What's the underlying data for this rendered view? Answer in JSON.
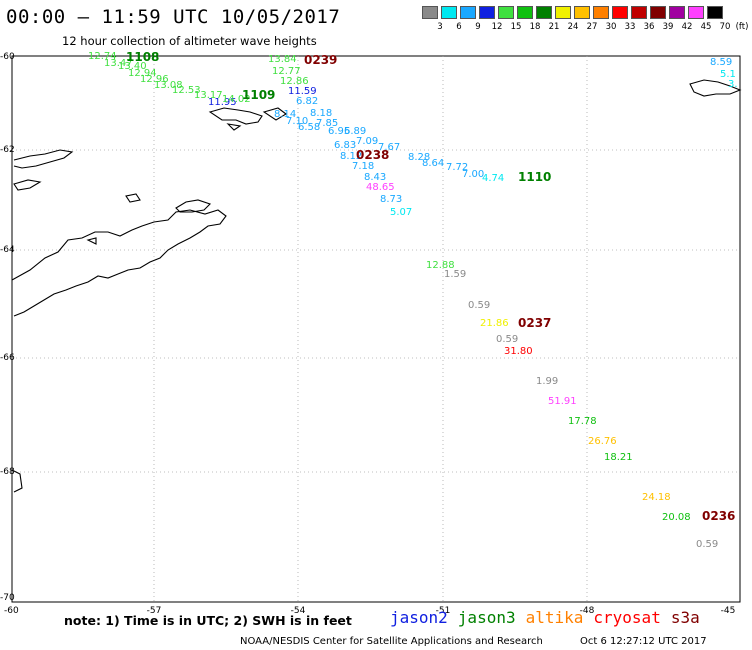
{
  "header": {
    "title": "00:00 – 11:59 UTC 10/05/2017",
    "subtitle": "12 hour collection of altimeter wave heights"
  },
  "legend": {
    "unit": "(ft)",
    "items": [
      {
        "label": "3",
        "color": "#8a8a8a"
      },
      {
        "label": "6",
        "color": "#00e8f0"
      },
      {
        "label": "9",
        "color": "#1aa8ff"
      },
      {
        "label": "12",
        "color": "#1020e0"
      },
      {
        "label": "15",
        "color": "#40e040"
      },
      {
        "label": "18",
        "color": "#10c010"
      },
      {
        "label": "21",
        "color": "#008000"
      },
      {
        "label": "24",
        "color": "#f0f000"
      },
      {
        "label": "27",
        "color": "#ffc000"
      },
      {
        "label": "30",
        "color": "#ff8000"
      },
      {
        "label": "33",
        "color": "#ff0000"
      },
      {
        "label": "36",
        "color": "#c00000"
      },
      {
        "label": "39",
        "color": "#800000"
      },
      {
        "label": "42",
        "color": "#a000a0"
      },
      {
        "label": "45",
        "color": "#ff40ff"
      },
      {
        "label": "70",
        "color": "#000000"
      }
    ]
  },
  "axes": {
    "lon_ticks": [
      "-60",
      "-57",
      "-54",
      "-51",
      "-48",
      "-45"
    ],
    "lat_ticks": [
      "-60",
      "-62",
      "-64",
      "-66",
      "-68",
      "-70"
    ]
  },
  "passes": [
    {
      "label": "1108",
      "color": "#008000"
    },
    {
      "label": "0239",
      "color": "#800000"
    },
    {
      "label": "1109",
      "color": "#008000"
    },
    {
      "label": "0238",
      "color": "#800000"
    },
    {
      "label": "1110",
      "color": "#008000"
    },
    {
      "label": "0237",
      "color": "#800000"
    },
    {
      "label": "0236",
      "color": "#800000"
    }
  ],
  "measurements": [
    {
      "value": "12.74",
      "color": "#40e040"
    },
    {
      "value": "13.47",
      "color": "#40e040"
    },
    {
      "value": "13.40",
      "color": "#40e040"
    },
    {
      "value": "12.94",
      "color": "#40e040"
    },
    {
      "value": "12.96",
      "color": "#40e040"
    },
    {
      "value": "13.08",
      "color": "#40e040"
    },
    {
      "value": "12.53",
      "color": "#40e040"
    },
    {
      "value": "13.17",
      "color": "#40e040"
    },
    {
      "value": "11.95",
      "color": "#1020e0"
    },
    {
      "value": "14.02",
      "color": "#40e040"
    },
    {
      "value": "13.84",
      "color": "#40e040"
    },
    {
      "value": "12.77",
      "color": "#40e040"
    },
    {
      "value": "12.86",
      "color": "#40e040"
    },
    {
      "value": "11.59",
      "color": "#1020e0"
    },
    {
      "value": "6.82",
      "color": "#1aa8ff"
    },
    {
      "value": "8.14",
      "color": "#1aa8ff"
    },
    {
      "value": "7.10",
      "color": "#1aa8ff"
    },
    {
      "value": "8.18",
      "color": "#1aa8ff"
    },
    {
      "value": "6.58",
      "color": "#1aa8ff"
    },
    {
      "value": "7.85",
      "color": "#1aa8ff"
    },
    {
      "value": "6.95",
      "color": "#1aa8ff"
    },
    {
      "value": "6.89",
      "color": "#1aa8ff"
    },
    {
      "value": "7.09",
      "color": "#1aa8ff"
    },
    {
      "value": "6.83",
      "color": "#1aa8ff"
    },
    {
      "value": "7.67",
      "color": "#1aa8ff"
    },
    {
      "value": "8.12",
      "color": "#1aa8ff"
    },
    {
      "value": "8.28",
      "color": "#1aa8ff"
    },
    {
      "value": "8.64",
      "color": "#1aa8ff"
    },
    {
      "value": "7.72",
      "color": "#1aa8ff"
    },
    {
      "value": "7.00",
      "color": "#1aa8ff"
    },
    {
      "value": "4.74",
      "color": "#00e8f0"
    },
    {
      "value": "7.18",
      "color": "#1aa8ff"
    },
    {
      "value": "8.43",
      "color": "#1aa8ff"
    },
    {
      "value": "48.65",
      "color": "#ff40ff"
    },
    {
      "value": "8.73",
      "color": "#1aa8ff"
    },
    {
      "value": "5.07",
      "color": "#00e8f0"
    },
    {
      "value": "8.59",
      "color": "#1aa8ff"
    },
    {
      "value": "5.1",
      "color": "#00e8f0"
    },
    {
      "value": "3.",
      "color": "#00e8f0"
    },
    {
      "value": "12.88",
      "color": "#40e040"
    },
    {
      "value": "1.59",
      "color": "#8a8a8a"
    },
    {
      "value": "0.59",
      "color": "#8a8a8a"
    },
    {
      "value": "21.86",
      "color": "#f0f000"
    },
    {
      "value": "0.59",
      "color": "#8a8a8a"
    },
    {
      "value": "31.80",
      "color": "#ff0000"
    },
    {
      "value": "1.99",
      "color": "#8a8a8a"
    },
    {
      "value": "51.91",
      "color": "#ff40ff"
    },
    {
      "value": "17.78",
      "color": "#10c010"
    },
    {
      "value": "26.76",
      "color": "#ffc000"
    },
    {
      "value": "18.21",
      "color": "#10c010"
    },
    {
      "value": "24.18",
      "color": "#ffc000"
    },
    {
      "value": "20.08",
      "color": "#10c010"
    },
    {
      "value": "0.59",
      "color": "#8a8a8a"
    }
  ],
  "footer": {
    "note": "note: 1) Time is in UTC; 2) SWH is in feet",
    "satellites": [
      {
        "name": "jason2",
        "color": "#1020e0"
      },
      {
        "name": "jason3",
        "color": "#008000"
      },
      {
        "name": "altika",
        "color": "#ff8000"
      },
      {
        "name": "cryosat",
        "color": "#ff0000"
      },
      {
        "name": "s3a",
        "color": "#800000"
      }
    ],
    "credit": "NOAA/NESDIS Center for Satellite Applications and Research",
    "timestamp": "Oct  6 12:27:12 UTC 2017"
  }
}
